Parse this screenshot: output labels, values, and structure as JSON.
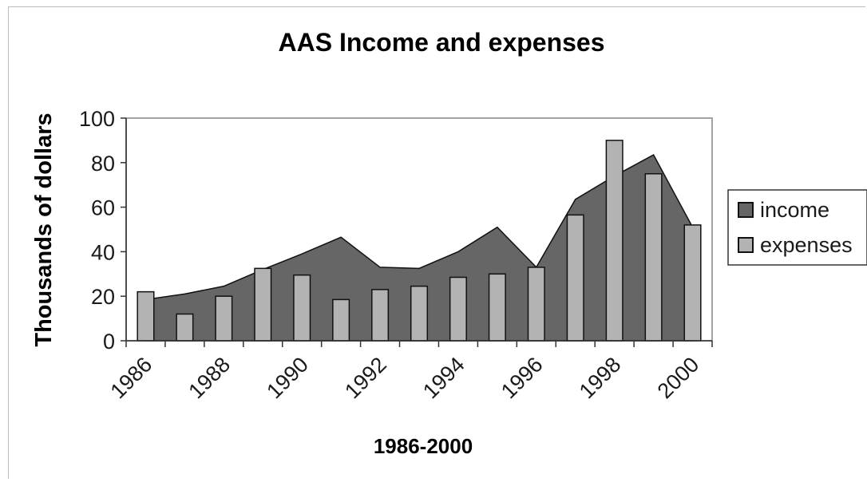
{
  "chart_data": {
    "type": "area",
    "title": "AAS Income and expenses",
    "xlabel": "1986-2000",
    "ylabel": "Thousands of dollars",
    "ylim": [
      0,
      100
    ],
    "yticks": [
      "0",
      "20",
      "40",
      "60",
      "80",
      "100"
    ],
    "x_tick_labels": [
      "1986",
      "1988",
      "1990",
      "1992",
      "1994",
      "1996",
      "1998",
      "2000"
    ],
    "categories": [
      "1986",
      "1987",
      "1988",
      "1989",
      "1990",
      "1991",
      "1992",
      "1993",
      "1994",
      "1995",
      "1996",
      "1997",
      "1998",
      "1999",
      "2000"
    ],
    "series": [
      {
        "name": "income",
        "type": "area",
        "color": "#666666",
        "values": [
          18.5,
          21,
          24.5,
          32,
          39,
          46.5,
          33,
          32.5,
          40,
          51,
          33,
          63.5,
          74,
          83.5,
          51
        ]
      },
      {
        "name": "expenses",
        "type": "bar",
        "color": "#b3b3b3",
        "values": [
          22,
          12,
          20,
          32.5,
          29.5,
          18.5,
          23,
          24.5,
          28.5,
          30,
          33,
          56.5,
          90,
          75,
          52
        ]
      }
    ],
    "legend_position": "right",
    "grid": false
  }
}
